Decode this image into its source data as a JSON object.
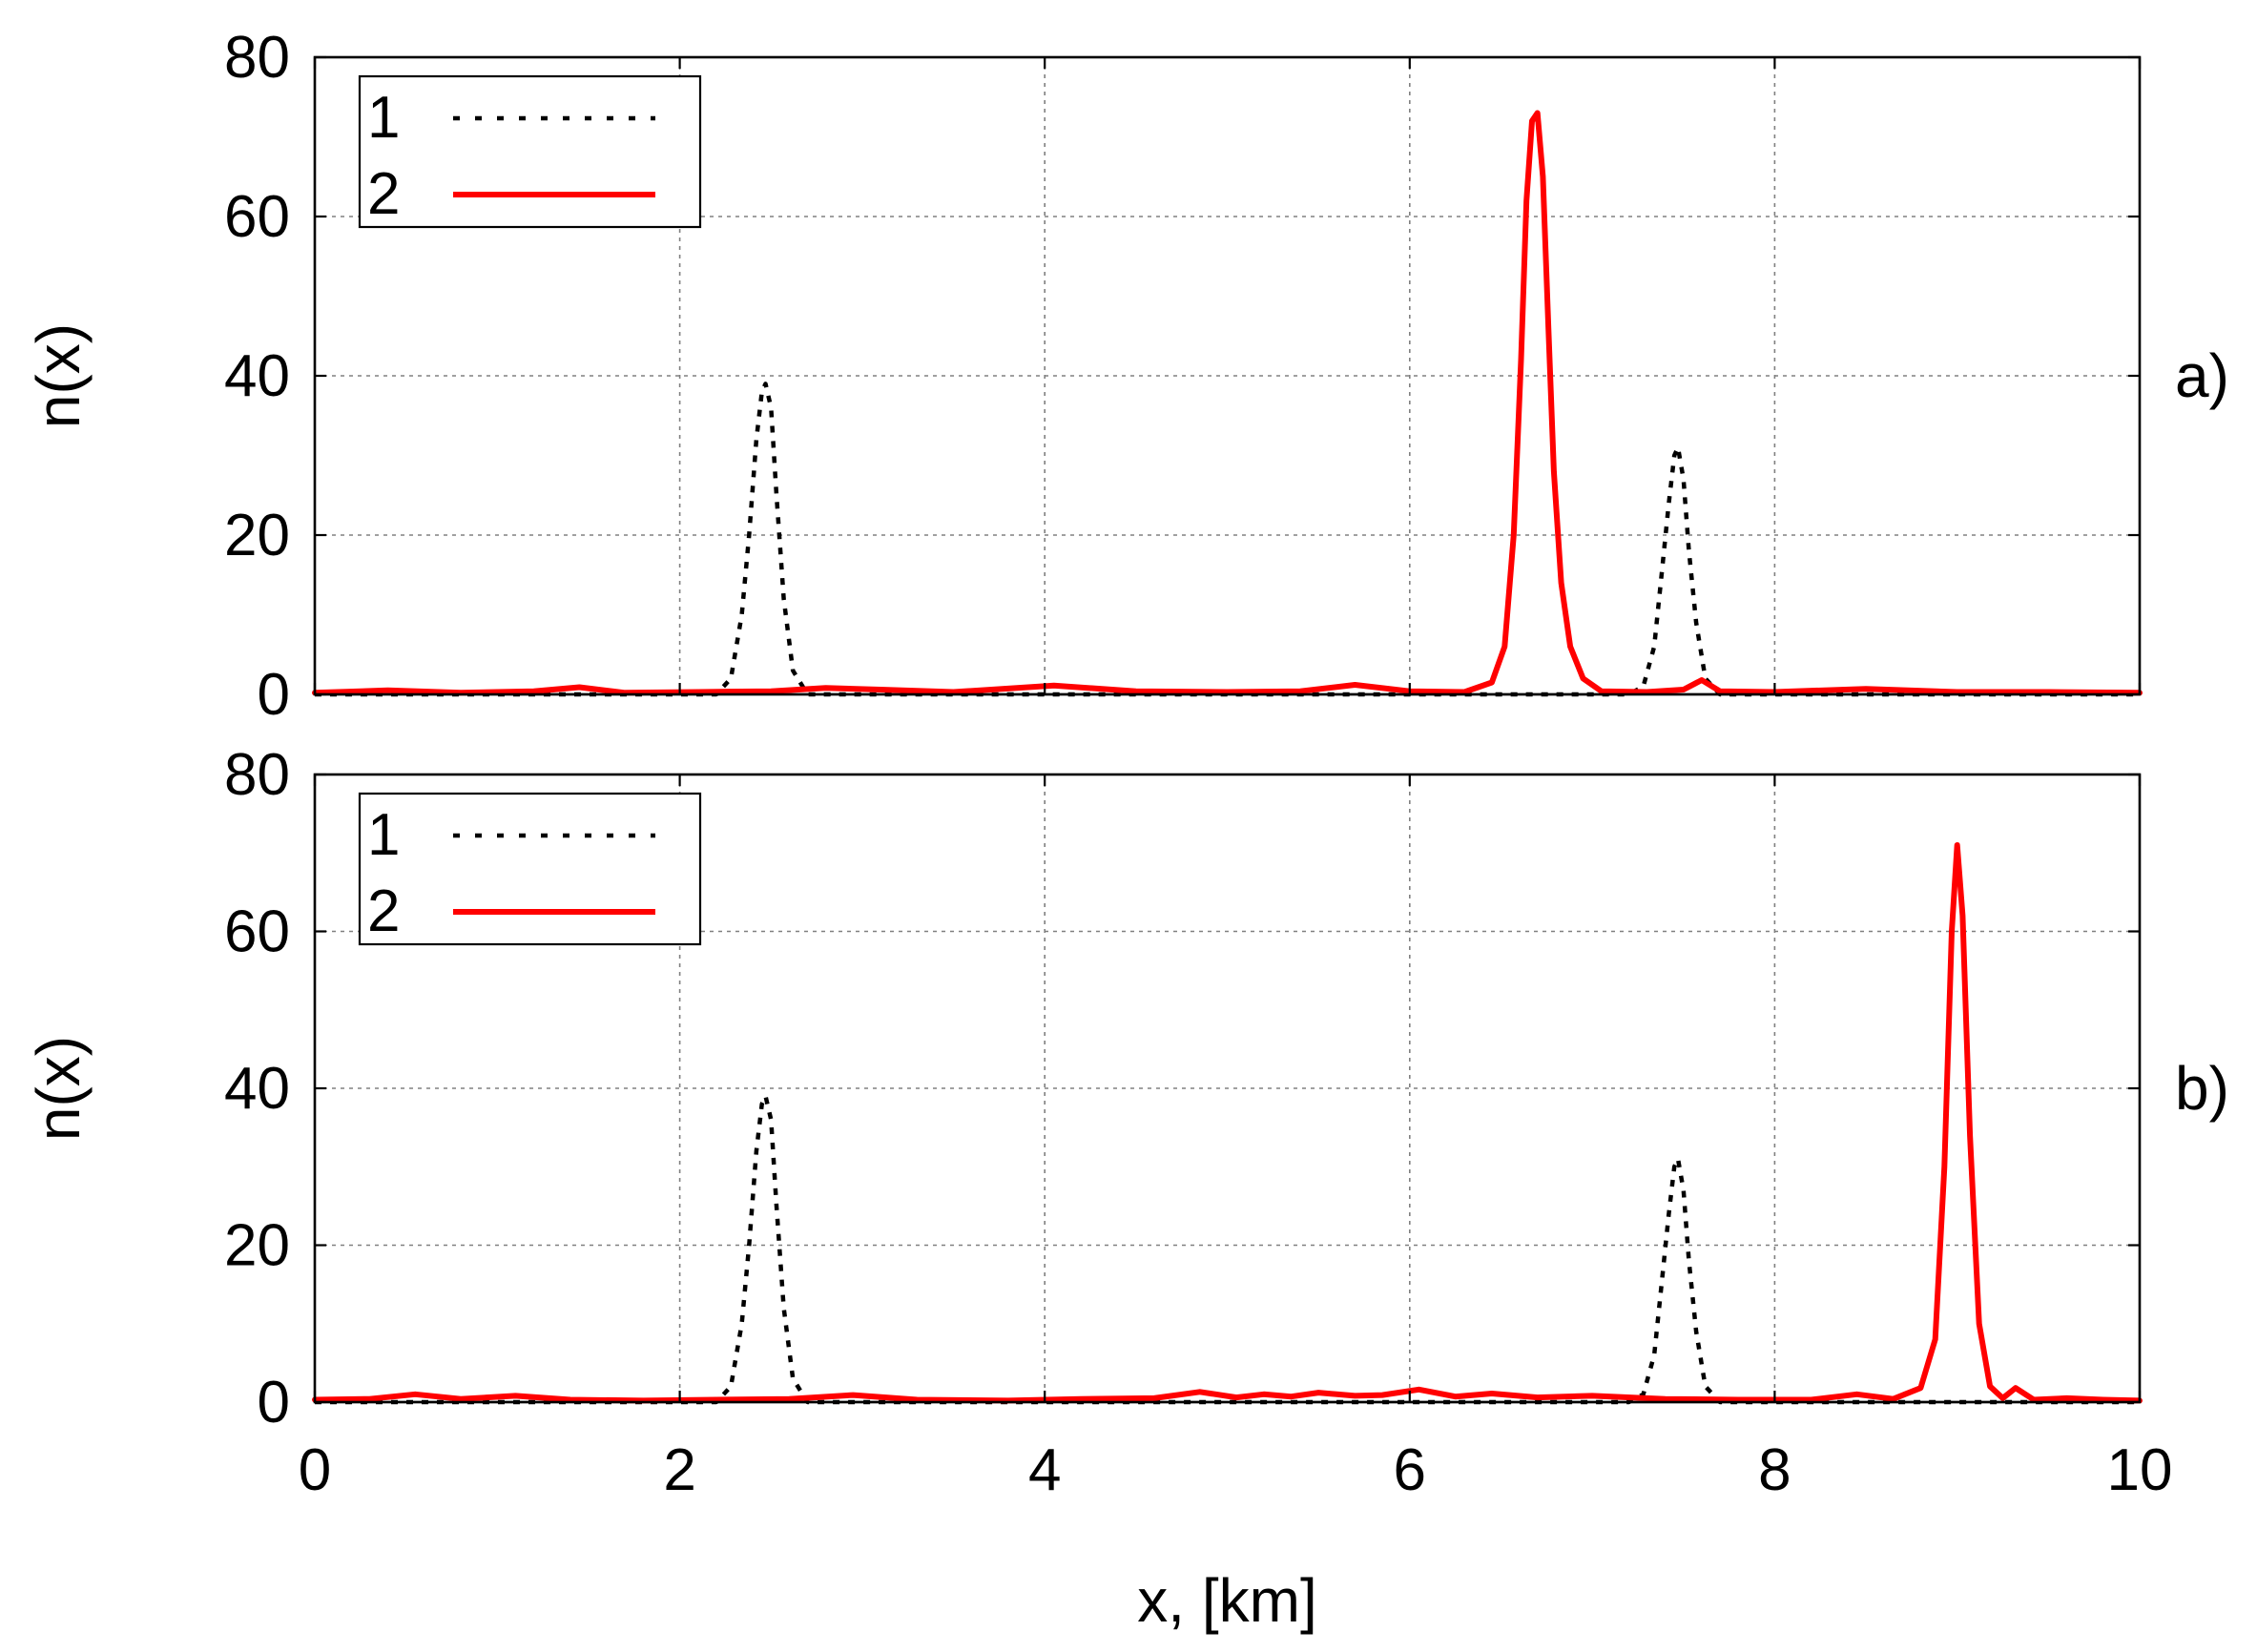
{
  "chart_data": [
    {
      "type": "line",
      "panel_label": "a)",
      "xlabel": "",
      "ylabel": "n(x)",
      "xlim": [
        0,
        10
      ],
      "ylim": [
        0,
        80
      ],
      "xticks": [
        0,
        2,
        4,
        6,
        8,
        10
      ],
      "yticks": [
        0,
        20,
        40,
        60,
        80
      ],
      "show_xtick_labels": false,
      "grid": true,
      "legend_position": "top-left",
      "series": [
        {
          "name": "1",
          "color": "#000000",
          "style": "dotted",
          "x": [
            0,
            2.2,
            2.28,
            2.34,
            2.38,
            2.42,
            2.45,
            2.47,
            2.5,
            2.53,
            2.57,
            2.62,
            2.7,
            7.2,
            7.28,
            7.34,
            7.38,
            7.42,
            7.45,
            7.47,
            7.5,
            7.53,
            7.57,
            7.62,
            7.7,
            10
          ],
          "y": [
            0,
            0,
            2,
            10,
            20,
            32,
            38,
            39,
            36,
            25,
            12,
            3,
            0,
            0,
            1,
            6,
            15,
            24,
            30,
            31,
            27,
            18,
            9,
            2,
            0,
            0
          ]
        },
        {
          "name": "2",
          "color": "#ff0000",
          "style": "solid",
          "x": [
            0,
            0.4,
            0.8,
            1.2,
            1.45,
            1.7,
            2.1,
            2.5,
            2.8,
            3.1,
            3.5,
            4.05,
            4.5,
            5.0,
            5.4,
            5.7,
            6.0,
            6.3,
            6.45,
            6.52,
            6.57,
            6.61,
            6.64,
            6.67,
            6.7,
            6.73,
            6.76,
            6.79,
            6.83,
            6.88,
            6.95,
            7.05,
            7.3,
            7.5,
            7.6,
            7.7,
            8.0,
            8.5,
            9.0,
            9.5,
            10
          ],
          "y": [
            0.2,
            0.5,
            0.2,
            0.4,
            0.9,
            0.2,
            0.3,
            0.4,
            0.8,
            0.6,
            0.3,
            1.1,
            0.4,
            0.3,
            0.4,
            1.2,
            0.4,
            0.3,
            1.5,
            6,
            20,
            42,
            62,
            72,
            73,
            65,
            46,
            28,
            14,
            6,
            2,
            0.4,
            0.3,
            0.6,
            1.8,
            0.4,
            0.3,
            0.7,
            0.3,
            0.3,
            0.2
          ]
        }
      ]
    },
    {
      "type": "line",
      "panel_label": "b)",
      "xlabel": "x, [km]",
      "ylabel": "n(x)",
      "xlim": [
        0,
        10
      ],
      "ylim": [
        0,
        80
      ],
      "xticks": [
        0,
        2,
        4,
        6,
        8,
        10
      ],
      "yticks": [
        0,
        20,
        40,
        60,
        80
      ],
      "show_xtick_labels": true,
      "grid": true,
      "legend_position": "top-left",
      "series": [
        {
          "name": "1",
          "color": "#000000",
          "style": "dotted",
          "x": [
            0,
            2.2,
            2.28,
            2.34,
            2.38,
            2.42,
            2.45,
            2.47,
            2.5,
            2.53,
            2.57,
            2.62,
            2.7,
            7.2,
            7.28,
            7.34,
            7.38,
            7.42,
            7.45,
            7.47,
            7.5,
            7.53,
            7.57,
            7.62,
            7.7,
            10
          ],
          "y": [
            0,
            0,
            2,
            10,
            20,
            32,
            38,
            39,
            36,
            25,
            12,
            3,
            0,
            0,
            1,
            6,
            15,
            24,
            30,
            31,
            27,
            18,
            9,
            2,
            0,
            0
          ]
        },
        {
          "name": "2",
          "color": "#ff0000",
          "style": "solid",
          "x": [
            0,
            0.3,
            0.55,
            0.8,
            1.1,
            1.4,
            1.8,
            2.2,
            2.6,
            2.95,
            3.3,
            3.8,
            4.2,
            4.6,
            4.85,
            5.05,
            5.2,
            5.35,
            5.5,
            5.7,
            5.85,
            6.05,
            6.25,
            6.45,
            6.7,
            7.0,
            7.4,
            7.8,
            8.2,
            8.45,
            8.65,
            8.8,
            8.88,
            8.93,
            8.97,
            9.0,
            9.03,
            9.07,
            9.12,
            9.18,
            9.25,
            9.32,
            9.42,
            9.6,
            9.8,
            10
          ],
          "y": [
            0.3,
            0.4,
            1.0,
            0.4,
            0.8,
            0.3,
            0.2,
            0.3,
            0.4,
            0.9,
            0.3,
            0.2,
            0.4,
            0.5,
            1.3,
            0.6,
            1.0,
            0.7,
            1.2,
            0.8,
            0.9,
            1.6,
            0.7,
            1.1,
            0.6,
            0.8,
            0.4,
            0.3,
            0.3,
            1.0,
            0.4,
            1.8,
            8,
            30,
            60,
            71,
            62,
            34,
            10,
            2,
            0.5,
            1.8,
            0.3,
            0.5,
            0.3,
            0.2
          ]
        }
      ]
    }
  ]
}
